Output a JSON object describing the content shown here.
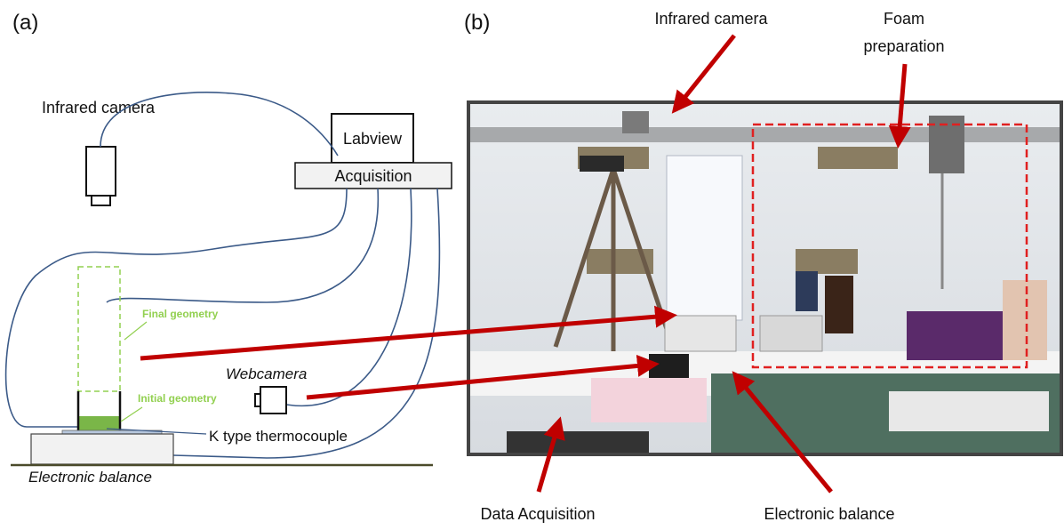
{
  "panel_a": {
    "label": "(a)",
    "infrared_camera": "Infrared camera",
    "labview": "Labview",
    "acquisition": "Acquisition",
    "final_geometry": "Final geometry",
    "initial_geometry": "Initial geometry",
    "webcamera": "Webcamera",
    "thermocouple": "K type thermocouple",
    "balance": "Electronic balance"
  },
  "panel_b": {
    "label": "(b)",
    "infrared_camera": "Infrared camera",
    "foam_preparation": [
      "Foam",
      "preparation"
    ],
    "data_acquisition": "Data Acquisition",
    "electronic_balance": "Electronic balance"
  }
}
